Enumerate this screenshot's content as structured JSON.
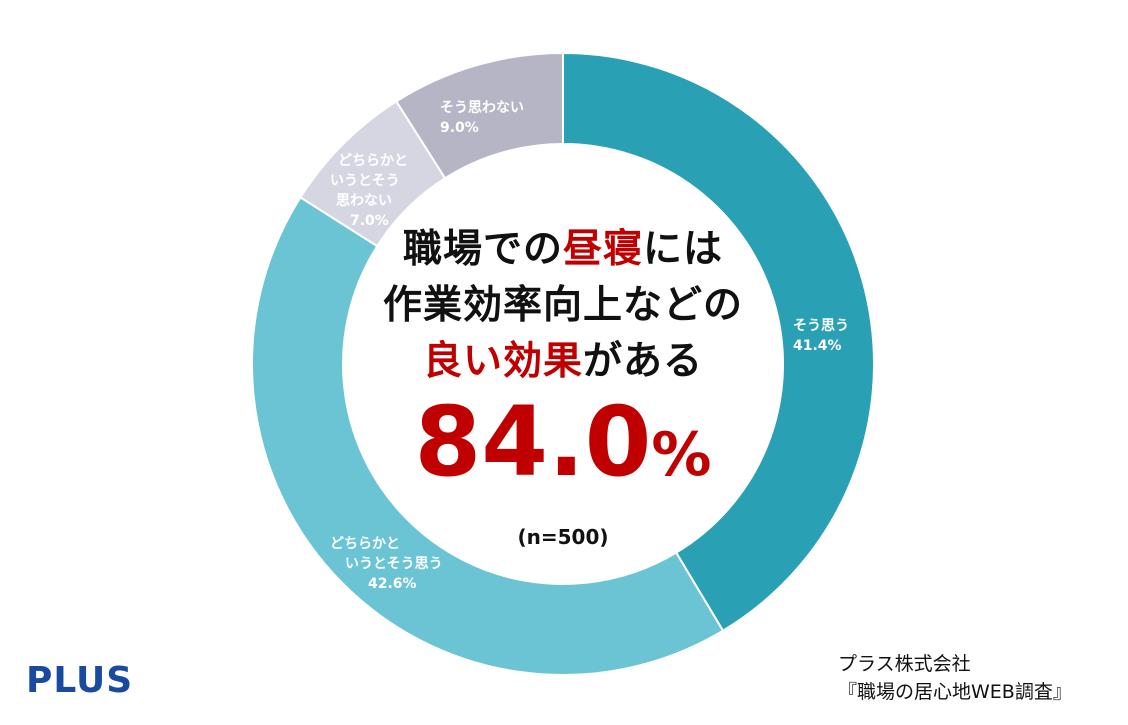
{
  "chart_data": {
    "type": "pie",
    "style": "donut",
    "n_label": "(n=500)",
    "slices": [
      {
        "label": "そう思う",
        "value": 41.4,
        "value_label": "41.4%",
        "color": "#2aa0b4"
      },
      {
        "label": "どちらかと\nいうとそう思う",
        "value": 42.6,
        "value_label": "42.6%",
        "color": "#6bc4d3"
      },
      {
        "label": "どちらかと\nいうとそう\n思わない",
        "value": 7.0,
        "value_label": "7.0%",
        "color": "#d6d6e2"
      },
      {
        "label": "そう思わない",
        "value": 9.0,
        "value_label": "9.0%",
        "color": "#b5b5c6"
      }
    ]
  },
  "headline": {
    "line1_pre": "職場での",
    "line1_highlight": "昼寝",
    "line1_post": "には",
    "line2": "作業効率向上などの",
    "line3_highlight": "良い効果",
    "line3_post": "がある",
    "big_number": "84.0",
    "big_unit": "%"
  },
  "brand": "PLUS",
  "credit": {
    "line1": "プラス株式会社",
    "line2": "『職場の居心地WEB調査』"
  }
}
